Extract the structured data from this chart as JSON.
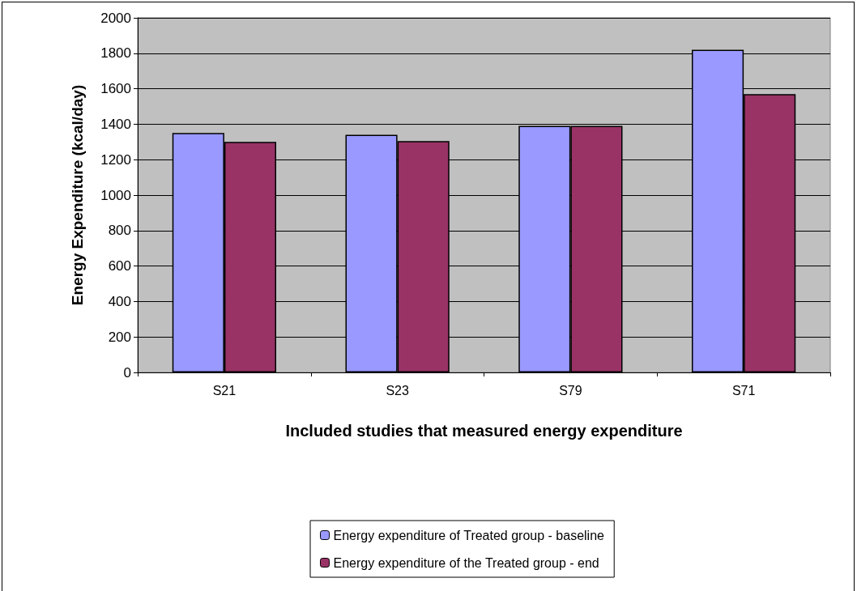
{
  "chart_data": {
    "type": "bar",
    "xlabel": "Included studies that measured energy expenditure",
    "ylabel": "Energy Expenditure (kcal/day)",
    "categories": [
      "S21",
      "S23",
      "S79",
      "S71"
    ],
    "series": [
      {
        "name": "Energy expenditure of Treated group - baseline",
        "color": "#9999ff",
        "values": [
          1350,
          1340,
          1390,
          1820
        ]
      },
      {
        "name": "Energy expenditure of the Treated group - end",
        "color": "#993366",
        "values": [
          1300,
          1305,
          1390,
          1570
        ]
      }
    ],
    "ylim": [
      0,
      2000
    ],
    "yticks": [
      0,
      200,
      400,
      600,
      800,
      1000,
      1200,
      1400,
      1600,
      1800,
      2000
    ],
    "grid": "y",
    "legend": "bottom"
  }
}
